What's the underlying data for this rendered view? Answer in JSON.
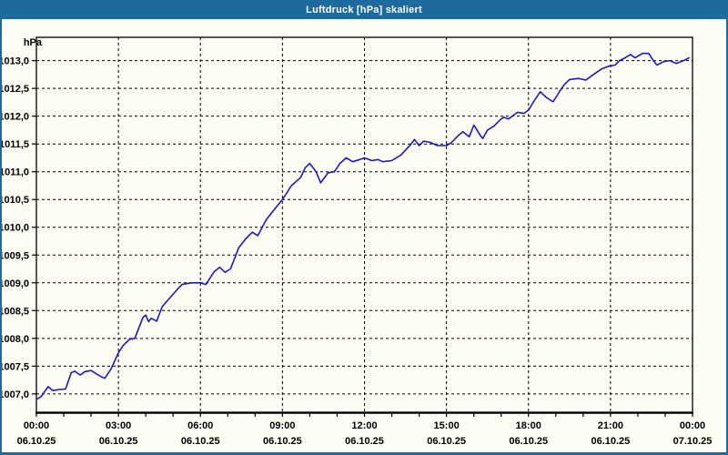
{
  "window": {
    "title": "Luftdruck [hPa] skaliert"
  },
  "colors": {
    "frame": "#1d6a9e",
    "background": "#fdfdf4",
    "line": "#1a1ac8",
    "grid": "#000000",
    "text": "#000000",
    "title_text": "#ffffff"
  },
  "chart_data": {
    "type": "line",
    "title": "Luftdruck [hPa] skaliert",
    "ylabel": "hPa",
    "xlabel": "",
    "grid": "dashed",
    "legend": "none",
    "xlim_hours": [
      0,
      24
    ],
    "ylim": [
      1006.67,
      1013.42
    ],
    "y_tick_values": [
      1007.0,
      1007.5,
      1008.0,
      1008.5,
      1009.0,
      1009.5,
      1010.0,
      1010.5,
      1011.0,
      1011.5,
      1012.0,
      1012.5,
      1013.0
    ],
    "y_tick_labels": [
      "1007,0",
      "1007,5",
      "1008,0",
      "1008,5",
      "1009,0",
      "1009,5",
      "1010,0",
      "1010,5",
      "1011,0",
      "1011,5",
      "1012,0",
      "1012,5",
      "1013,0"
    ],
    "x_major_tick_hours": [
      0,
      3,
      6,
      9,
      12,
      15,
      18,
      21,
      24
    ],
    "x_tick_time_labels": [
      "00:00",
      "03:00",
      "06:00",
      "09:00",
      "12:00",
      "15:00",
      "18:00",
      "21:00",
      "00:00"
    ],
    "x_tick_date_labels": [
      "06.10.25",
      "06.10.25",
      "06.10.25",
      "06.10.25",
      "06.10.25",
      "06.10.25",
      "06.10.25",
      "06.10.25",
      "07.10.25"
    ],
    "x_minor_step_hours": 1,
    "series": [
      {
        "name": "Luftdruck",
        "unit": "hPa",
        "color": "#1a1ac8",
        "points": [
          [
            0.0,
            1006.9
          ],
          [
            0.17,
            1006.95
          ],
          [
            0.43,
            1007.13
          ],
          [
            0.6,
            1007.06
          ],
          [
            0.83,
            1007.08
          ],
          [
            1.07,
            1007.09
          ],
          [
            1.27,
            1007.38
          ],
          [
            1.4,
            1007.41
          ],
          [
            1.6,
            1007.34
          ],
          [
            1.77,
            1007.4
          ],
          [
            2.0,
            1007.42
          ],
          [
            2.33,
            1007.32
          ],
          [
            2.5,
            1007.28
          ],
          [
            2.73,
            1007.45
          ],
          [
            3.0,
            1007.74
          ],
          [
            3.17,
            1007.87
          ],
          [
            3.4,
            1007.98
          ],
          [
            3.6,
            1008.0
          ],
          [
            3.9,
            1008.38
          ],
          [
            4.0,
            1008.42
          ],
          [
            4.1,
            1008.3
          ],
          [
            4.2,
            1008.36
          ],
          [
            4.4,
            1008.31
          ],
          [
            4.6,
            1008.57
          ],
          [
            4.83,
            1008.7
          ],
          [
            5.17,
            1008.89
          ],
          [
            5.33,
            1008.97
          ],
          [
            5.67,
            1009.0
          ],
          [
            6.0,
            1009.0
          ],
          [
            6.2,
            1008.97
          ],
          [
            6.5,
            1009.2
          ],
          [
            6.7,
            1009.28
          ],
          [
            6.9,
            1009.19
          ],
          [
            7.1,
            1009.25
          ],
          [
            7.4,
            1009.63
          ],
          [
            7.67,
            1009.8
          ],
          [
            7.9,
            1009.91
          ],
          [
            8.1,
            1009.85
          ],
          [
            8.4,
            1010.13
          ],
          [
            8.67,
            1010.3
          ],
          [
            9.0,
            1010.5
          ],
          [
            9.33,
            1010.75
          ],
          [
            9.67,
            1010.9
          ],
          [
            9.83,
            1011.07
          ],
          [
            10.0,
            1011.15
          ],
          [
            10.23,
            1011.0
          ],
          [
            10.4,
            1010.8
          ],
          [
            10.67,
            1010.98
          ],
          [
            10.9,
            1011.0
          ],
          [
            11.1,
            1011.15
          ],
          [
            11.33,
            1011.25
          ],
          [
            11.57,
            1011.18
          ],
          [
            11.83,
            1011.22
          ],
          [
            12.0,
            1011.25
          ],
          [
            12.27,
            1011.2
          ],
          [
            12.5,
            1011.22
          ],
          [
            12.67,
            1011.18
          ],
          [
            13.0,
            1011.2
          ],
          [
            13.33,
            1011.3
          ],
          [
            13.67,
            1011.48
          ],
          [
            13.83,
            1011.58
          ],
          [
            14.0,
            1011.47
          ],
          [
            14.17,
            1011.55
          ],
          [
            14.4,
            1011.53
          ],
          [
            14.67,
            1011.47
          ],
          [
            15.0,
            1011.47
          ],
          [
            15.17,
            1011.52
          ],
          [
            15.43,
            1011.65
          ],
          [
            15.6,
            1011.72
          ],
          [
            15.83,
            1011.63
          ],
          [
            16.0,
            1011.84
          ],
          [
            16.27,
            1011.63
          ],
          [
            16.33,
            1011.6
          ],
          [
            16.5,
            1011.75
          ],
          [
            16.73,
            1011.82
          ],
          [
            17.0,
            1011.95
          ],
          [
            17.1,
            1011.98
          ],
          [
            17.27,
            1011.95
          ],
          [
            17.6,
            1012.07
          ],
          [
            17.83,
            1012.05
          ],
          [
            18.0,
            1012.11
          ],
          [
            18.17,
            1012.25
          ],
          [
            18.43,
            1012.44
          ],
          [
            18.67,
            1012.33
          ],
          [
            18.9,
            1012.26
          ],
          [
            19.17,
            1012.47
          ],
          [
            19.33,
            1012.58
          ],
          [
            19.5,
            1012.66
          ],
          [
            19.83,
            1012.68
          ],
          [
            20.1,
            1012.65
          ],
          [
            20.43,
            1012.77
          ],
          [
            20.67,
            1012.85
          ],
          [
            20.93,
            1012.9
          ],
          [
            21.17,
            1012.92
          ],
          [
            21.33,
            1013.0
          ],
          [
            21.53,
            1013.05
          ],
          [
            21.73,
            1013.11
          ],
          [
            21.9,
            1013.05
          ],
          [
            22.17,
            1013.13
          ],
          [
            22.4,
            1013.13
          ],
          [
            22.57,
            1013.0
          ],
          [
            22.7,
            1012.92
          ],
          [
            22.93,
            1012.98
          ],
          [
            23.17,
            1013.0
          ],
          [
            23.4,
            1012.95
          ],
          [
            23.67,
            1013.0
          ],
          [
            23.87,
            1013.05
          ]
        ]
      }
    ]
  }
}
